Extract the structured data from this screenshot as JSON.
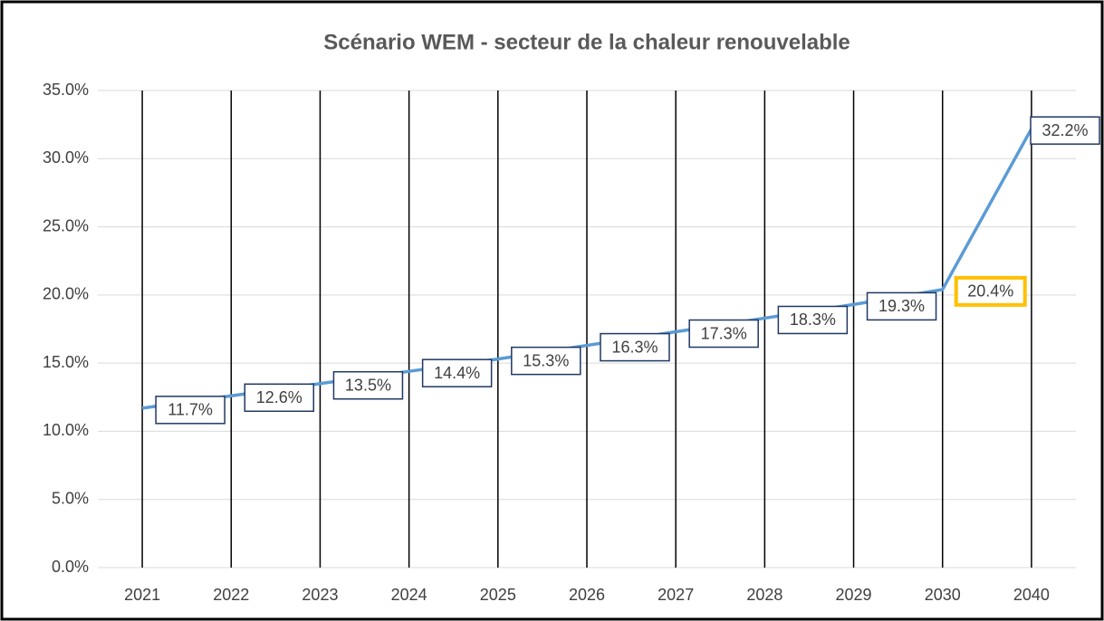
{
  "chart_data": {
    "type": "line",
    "title": "Scénario WEM - secteur de la chaleur renouvelable",
    "categories": [
      "2021",
      "2022",
      "2023",
      "2024",
      "2025",
      "2026",
      "2027",
      "2028",
      "2029",
      "2030",
      "2040"
    ],
    "series": [
      {
        "name": "Scénario WEM",
        "color": "#5b9bd5",
        "values": [
          11.7,
          12.6,
          13.5,
          14.4,
          15.3,
          16.3,
          17.3,
          18.3,
          19.3,
          20.4,
          32.2
        ],
        "value_labels": [
          "11.7%",
          "12.6%",
          "13.5%",
          "14.4%",
          "15.3%",
          "16.3%",
          "17.3%",
          "18.3%",
          "19.3%",
          "20.4%",
          "32.2%"
        ]
      }
    ],
    "ylim": [
      0,
      35
    ],
    "yticks": [
      {
        "value": 0,
        "label": "0.0%"
      },
      {
        "value": 5,
        "label": "5.0%"
      },
      {
        "value": 10,
        "label": "10.0%"
      },
      {
        "value": 15,
        "label": "15.0%"
      },
      {
        "value": 20,
        "label": "20.0%"
      },
      {
        "value": 25,
        "label": "25.0%"
      },
      {
        "value": 30,
        "label": "30.0%"
      },
      {
        "value": 35,
        "label": "35.0%"
      }
    ],
    "grid": true,
    "label_highlight": {
      "index": 9,
      "color": "#ffc000"
    }
  }
}
